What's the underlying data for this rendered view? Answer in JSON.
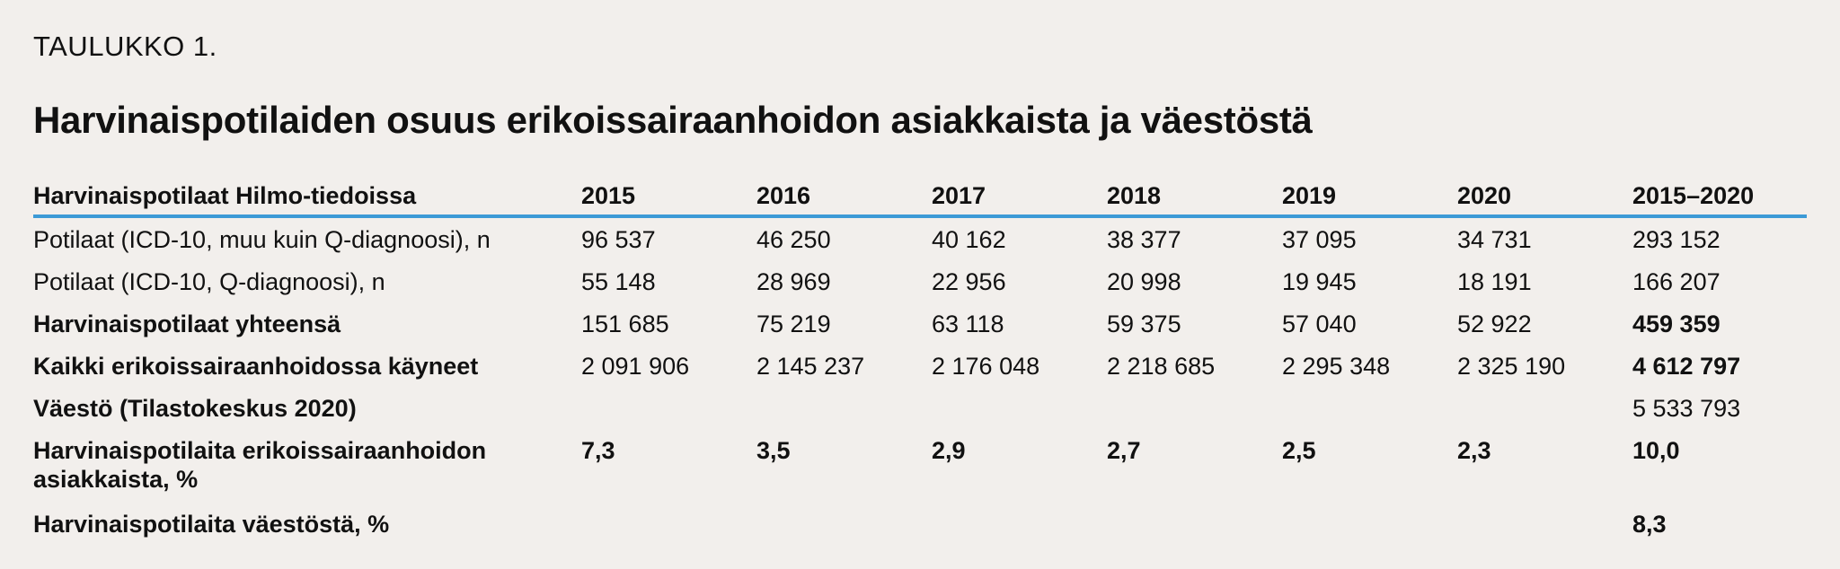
{
  "label": "TAULUKKO 1.",
  "title": "Harvinaispotilaiden osuus erikoissairaanhoidon asiakkaista ja väestöstä",
  "table": {
    "headers": [
      "Harvinaispotilaat Hilmo-tiedoissa",
      "2015",
      "2016",
      "2017",
      "2018",
      "2019",
      "2020",
      "2015–2020"
    ],
    "rows": [
      {
        "label": "Potilaat (ICD-10, muu kuin Q-diagnoosi), n",
        "values": [
          "96 537",
          "46 250",
          "40 162",
          "38 377",
          "37 095",
          "34 731",
          "293 152"
        ]
      },
      {
        "label": "Potilaat (ICD-10, Q-diagnoosi), n",
        "values": [
          "55 148",
          "28 969",
          "22 956",
          "20 998",
          "19 945",
          "18 191",
          "166 207"
        ]
      },
      {
        "label": "Harvinaispotilaat yhteensä",
        "values": [
          "151 685",
          "75 219",
          "63 118",
          "59 375",
          "57 040",
          "52 922",
          "459 359"
        ]
      },
      {
        "label": "Kaikki erikoissairaanhoidossa käyneet",
        "values": [
          "2 091 906",
          "2 145 237",
          "2 176 048",
          "2 218 685",
          "2 295 348",
          "2 325 190",
          "4 612 797"
        ]
      },
      {
        "label": "Väestö (Tilastokeskus 2020)",
        "values": [
          "",
          "",
          "",
          "",
          "",
          "",
          "5 533 793"
        ]
      },
      {
        "label": "Harvinaispotilaita erikoissairaanhoidon asiakkaista, %",
        "values": [
          "7,3",
          "3,5",
          "2,9",
          "2,7",
          "2,5",
          "2,3",
          "10,0"
        ]
      },
      {
        "label": "Harvinaispotilaita väestöstä, %",
        "values": [
          "",
          "",
          "",
          "",
          "",
          "",
          "8,3"
        ]
      }
    ]
  }
}
